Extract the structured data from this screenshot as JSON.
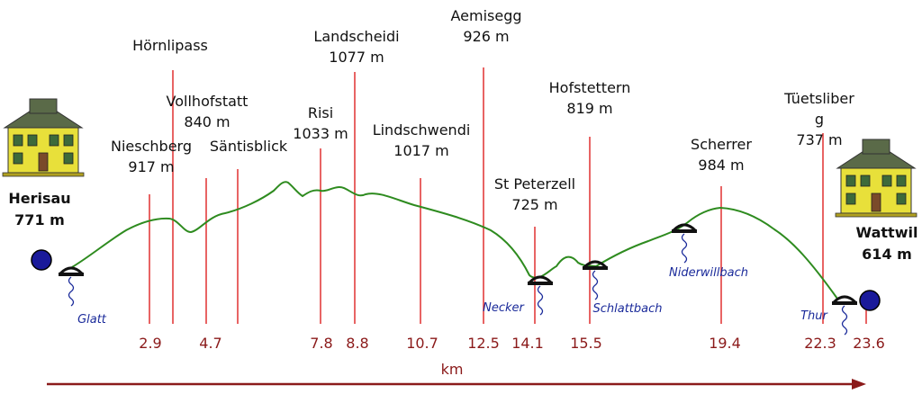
{
  "start": {
    "name": "Herisau",
    "elevation": "771 m"
  },
  "end": {
    "name": "Wattwil",
    "elevation": "614 m"
  },
  "axis_label": "km",
  "colors": {
    "profile": "#2e8b1f",
    "marker": "#e03030",
    "km_text": "#8b1a1a",
    "river": "#1a2a9a",
    "endpoint": "#1a1a9a"
  },
  "waypoints": [
    {
      "km": "2.9",
      "line1": "Nieschberg",
      "line2": "917 m"
    },
    {
      "km": "",
      "line1": "Hörnlipass",
      "line2": ""
    },
    {
      "km": "4.7",
      "line1": "Vollhofstatt",
      "line2": "840 m"
    },
    {
      "km": "",
      "line1": "Säntisblick",
      "line2": ""
    },
    {
      "km": "7.8",
      "line1": "Risi",
      "line2": "1033 m"
    },
    {
      "km": "8.8",
      "line1": "Landscheidi",
      "line2": "1077 m"
    },
    {
      "km": "10.7",
      "line1": "Lindschwendi",
      "line2": "1017 m"
    },
    {
      "km": "12.5",
      "line1": "Aemisegg",
      "line2": "926 m"
    },
    {
      "km": "14.1",
      "line1": "St Peterzell",
      "line2": "725 m"
    },
    {
      "km": "15.5",
      "line1": "Hofstettern",
      "line2": "819 m"
    },
    {
      "km": "19.4",
      "line1": "Scherrer",
      "line2": "984 m"
    },
    {
      "km": "22.3",
      "line1": "Tüetsliber",
      "line2": "g",
      "line3": "737 m"
    },
    {
      "km": "23.6",
      "line1": "",
      "line2": ""
    }
  ],
  "rivers": [
    "Glatt",
    "Necker",
    "Schlattbach",
    "Niderwillbach",
    "Thur"
  ]
}
